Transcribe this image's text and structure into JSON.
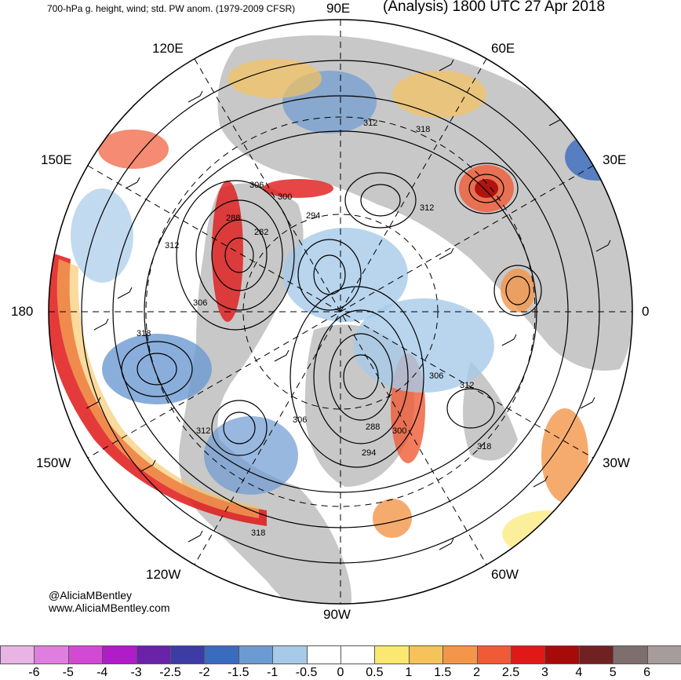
{
  "header": {
    "left_title": "700-hPa g. height, wind; std. PW anom. (1979-2009 CFSR)",
    "right_title": "(Analysis) 1800 UTC 27 Apr 2018"
  },
  "longitude_labels": [
    "90E",
    "60E",
    "30E",
    "0",
    "30W",
    "60W",
    "90W",
    "120W",
    "150W",
    "180",
    "150E",
    "120E"
  ],
  "height_labels": [
    "312",
    "318",
    "306",
    "300",
    "294",
    "312",
    "288",
    "282",
    "312",
    "306",
    "318",
    "306",
    "312",
    "318",
    "288",
    "300",
    "294",
    "306",
    "312",
    "318"
  ],
  "credits": {
    "handle": "@AliciaMBentley",
    "website": "www.AliciaMBentley.com"
  },
  "colorbar": {
    "colors": [
      "#e8b4e6",
      "#e07ee0",
      "#d24ad4",
      "#b01cc8",
      "#6a22a8",
      "#3c3ca4",
      "#3a6cbe",
      "#6c9ad2",
      "#a6cae8",
      "#ffffff",
      "#ffffff",
      "#fbe870",
      "#f6c25c",
      "#f4964a",
      "#f05a36",
      "#e01818",
      "#a80a0a",
      "#702222",
      "#7e6e6e",
      "#a69c9c"
    ],
    "ticks": [
      "-6",
      "-5",
      "-4",
      "-3",
      "-2.5",
      "-2",
      "-1.5",
      "-1",
      "-0.5",
      "0",
      "0.5",
      "1",
      "1.5",
      "2",
      "2.5",
      "3",
      "4",
      "5",
      "6"
    ]
  },
  "land_color": "#c8c8c8"
}
